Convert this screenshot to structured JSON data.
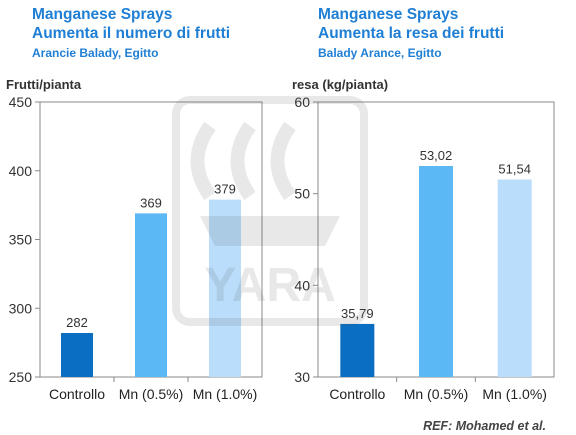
{
  "left": {
    "title1": "Manganese Sprays",
    "title2": "Aumenta il numero di frutti",
    "title3": "Arancie Balady, Egitto",
    "ylabel": "Frutti/pianta"
  },
  "right": {
    "title1": "Manganese Sprays",
    "title2": "Aumenta la resa dei frutti",
    "title3": "Balady Arance, Egitto",
    "ylabel": "resa (kg/pianta)"
  },
  "reference": "REF: Mohamed et al.",
  "watermark_text": "YARA",
  "colors": {
    "title": "#1f7fd4",
    "bar1": "#0a6fc2",
    "bar2": "#5cb8f5",
    "bar3": "#b9ddfb"
  },
  "chart_data": [
    {
      "type": "bar",
      "title": "Aumenta il numero di frutti",
      "ylabel": "Frutti/pianta",
      "categories": [
        "Controllo",
        "Mn (0.5%)",
        "Mn (1.0%)"
      ],
      "values": [
        282,
        369,
        379
      ],
      "labels": [
        "282",
        "369",
        "379"
      ],
      "ylim": [
        250,
        450
      ],
      "yticks": [
        250,
        300,
        350,
        400,
        450
      ],
      "ytick_labels": [
        "250",
        "300",
        "350",
        "400",
        "450"
      ],
      "grid": false
    },
    {
      "type": "bar",
      "title": "Aumenta la resa dei frutti",
      "ylabel": "resa (kg/pianta)",
      "categories": [
        "Controllo",
        "Mn (0.5%)",
        "Mn (1.0%)"
      ],
      "values": [
        35.79,
        53.02,
        51.54
      ],
      "labels": [
        "35,79",
        "53,02",
        "51,54"
      ],
      "ylim": [
        30,
        60
      ],
      "yticks": [
        30,
        40,
        50,
        60
      ],
      "ytick_labels": [
        "30",
        "40",
        "50",
        "60"
      ],
      "grid": false
    }
  ]
}
